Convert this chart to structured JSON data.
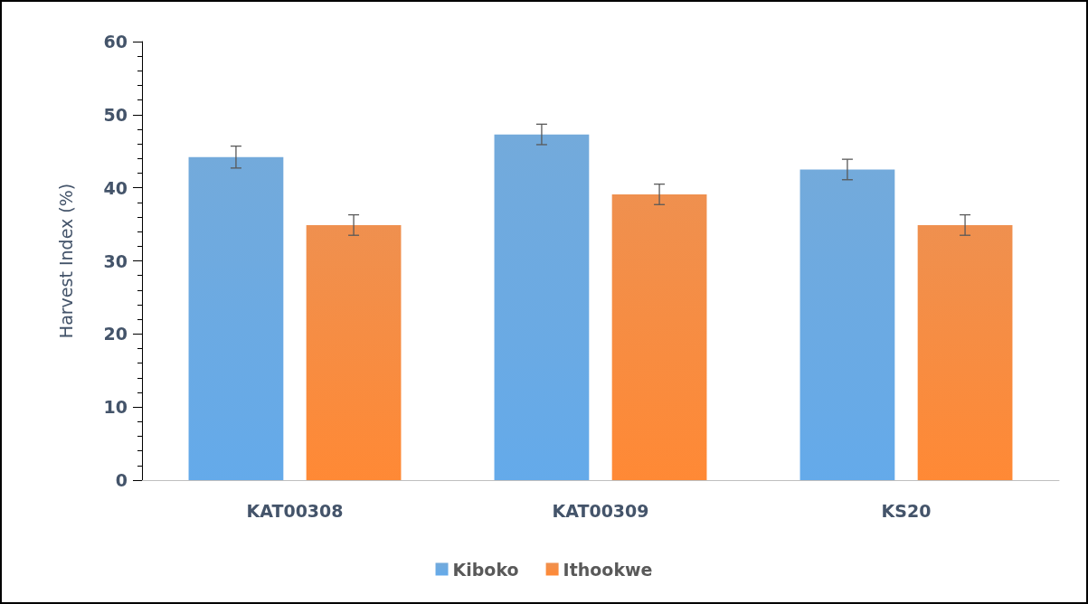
{
  "chart_data": {
    "type": "bar",
    "ylabel": "Harvest Index (%)",
    "categories": [
      "KAT00308",
      "KAT00309",
      "KS20"
    ],
    "series": [
      {
        "name": "Kiboko",
        "color": "#5b9bd5",
        "values": [
          44.2,
          47.3,
          42.5
        ],
        "errors": [
          1.5,
          1.4,
          1.4
        ]
      },
      {
        "name": "Ithookwe",
        "color": "#ed7d31",
        "values": [
          34.9,
          39.1,
          34.9
        ],
        "errors": [
          1.4,
          1.4,
          1.4
        ]
      }
    ],
    "ylim": [
      0,
      60
    ],
    "yticks": [
      0,
      10,
      20,
      30,
      40,
      50,
      60
    ],
    "grid": false,
    "legend": "bottom"
  }
}
